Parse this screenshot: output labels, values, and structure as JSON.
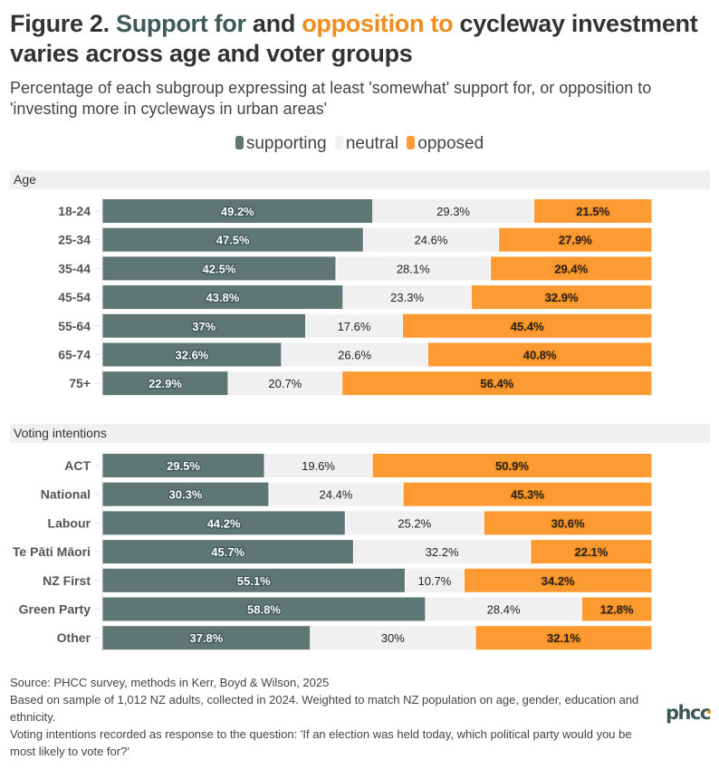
{
  "title": {
    "prefix": "Figure 2. ",
    "support_phrase": "Support for",
    "middle": " and ",
    "opposition_phrase": "opposition to",
    "suffix": " cycleway investment varies across age and voter groups"
  },
  "subtitle": "Percentage of each subgroup expressing at least 'somewhat' support for, or opposition to 'investing more in cycleways in urban areas'",
  "colors": {
    "supporting": "#5f7774",
    "neutral": "#f0f0f0",
    "opposed": "#fd9b32",
    "title_support": "#3d5a58",
    "title_opposed": "#f28c1c",
    "section_bg": "#f0f0f0"
  },
  "chart_data": {
    "type": "bar",
    "orientation": "horizontal",
    "stacked": true,
    "normalized_to": 100,
    "title": "Figure 2. Support for and opposition to cycleway investment varies across age and voter groups",
    "subtitle": "Percentage of each subgroup expressing at least 'somewhat' support for, or opposition to 'investing more in cycleways in urban areas'",
    "xlabel": "",
    "ylabel": "",
    "xlim": [
      0,
      100
    ],
    "grid": false,
    "legend": {
      "position": "top-center",
      "entries": [
        "supporting",
        "neutral",
        "opposed"
      ]
    },
    "series_names": [
      "supporting",
      "neutral",
      "opposed"
    ],
    "groups": [
      {
        "name": "Age",
        "categories": [
          "18-24",
          "25-34",
          "35-44",
          "45-54",
          "55-64",
          "65-74",
          "75+"
        ],
        "series": [
          {
            "name": "supporting",
            "values": [
              49.2,
              47.5,
              42.5,
              43.8,
              37,
              32.6,
              22.9
            ]
          },
          {
            "name": "neutral",
            "values": [
              29.3,
              24.6,
              28.1,
              23.3,
              17.6,
              26.6,
              20.7
            ]
          },
          {
            "name": "opposed",
            "values": [
              21.5,
              27.9,
              29.4,
              32.9,
              45.4,
              40.8,
              56.4
            ]
          }
        ],
        "labels": {
          "supporting": [
            "49.2%",
            "47.5%",
            "42.5%",
            "43.8%",
            "37%",
            "32.6%",
            "22.9%"
          ],
          "neutral": [
            "29.3%",
            "24.6%",
            "28.1%",
            "23.3%",
            "17.6%",
            "26.6%",
            "20.7%"
          ],
          "opposed": [
            "21.5%",
            "27.9%",
            "29.4%",
            "32.9%",
            "45.4%",
            "40.8%",
            "56.4%"
          ]
        }
      },
      {
        "name": "Voting intentions",
        "categories": [
          "ACT",
          "National",
          "Labour",
          "Te Pāti Māori",
          "NZ First",
          "Green Party",
          "Other"
        ],
        "series": [
          {
            "name": "supporting",
            "values": [
              29.5,
              30.3,
              44.2,
              45.7,
              55.1,
              58.8,
              37.8
            ]
          },
          {
            "name": "neutral",
            "values": [
              19.6,
              24.4,
              25.2,
              32.2,
              10.7,
              28.4,
              30
            ]
          },
          {
            "name": "opposed",
            "values": [
              50.9,
              45.3,
              30.6,
              22.1,
              34.2,
              12.8,
              32.1
            ]
          }
        ],
        "labels": {
          "supporting": [
            "29.5%",
            "30.3%",
            "44.2%",
            "45.7%",
            "55.1%",
            "58.8%",
            "37.8%"
          ],
          "neutral": [
            "19.6%",
            "24.4%",
            "25.2%",
            "32.2%",
            "10.7%",
            "28.4%",
            "30%"
          ],
          "opposed": [
            "50.9%",
            "45.3%",
            "30.6%",
            "22.1%",
            "34.2%",
            "12.8%",
            "32.1%"
          ]
        }
      }
    ]
  },
  "footer": {
    "source": "Source: PHCC survey, methods in Kerr, Boyd & Wilson, 2025",
    "sample": "Based on sample of 1,012 NZ adults, collected in 2024. Weighted to match NZ population on age, gender, education and ethnicity.",
    "voting_note": "Voting intentions recorded as response to the question: 'If an election was held today, which political party would you be most likely to vote for?'"
  },
  "logo": {
    "text": "phcc"
  }
}
